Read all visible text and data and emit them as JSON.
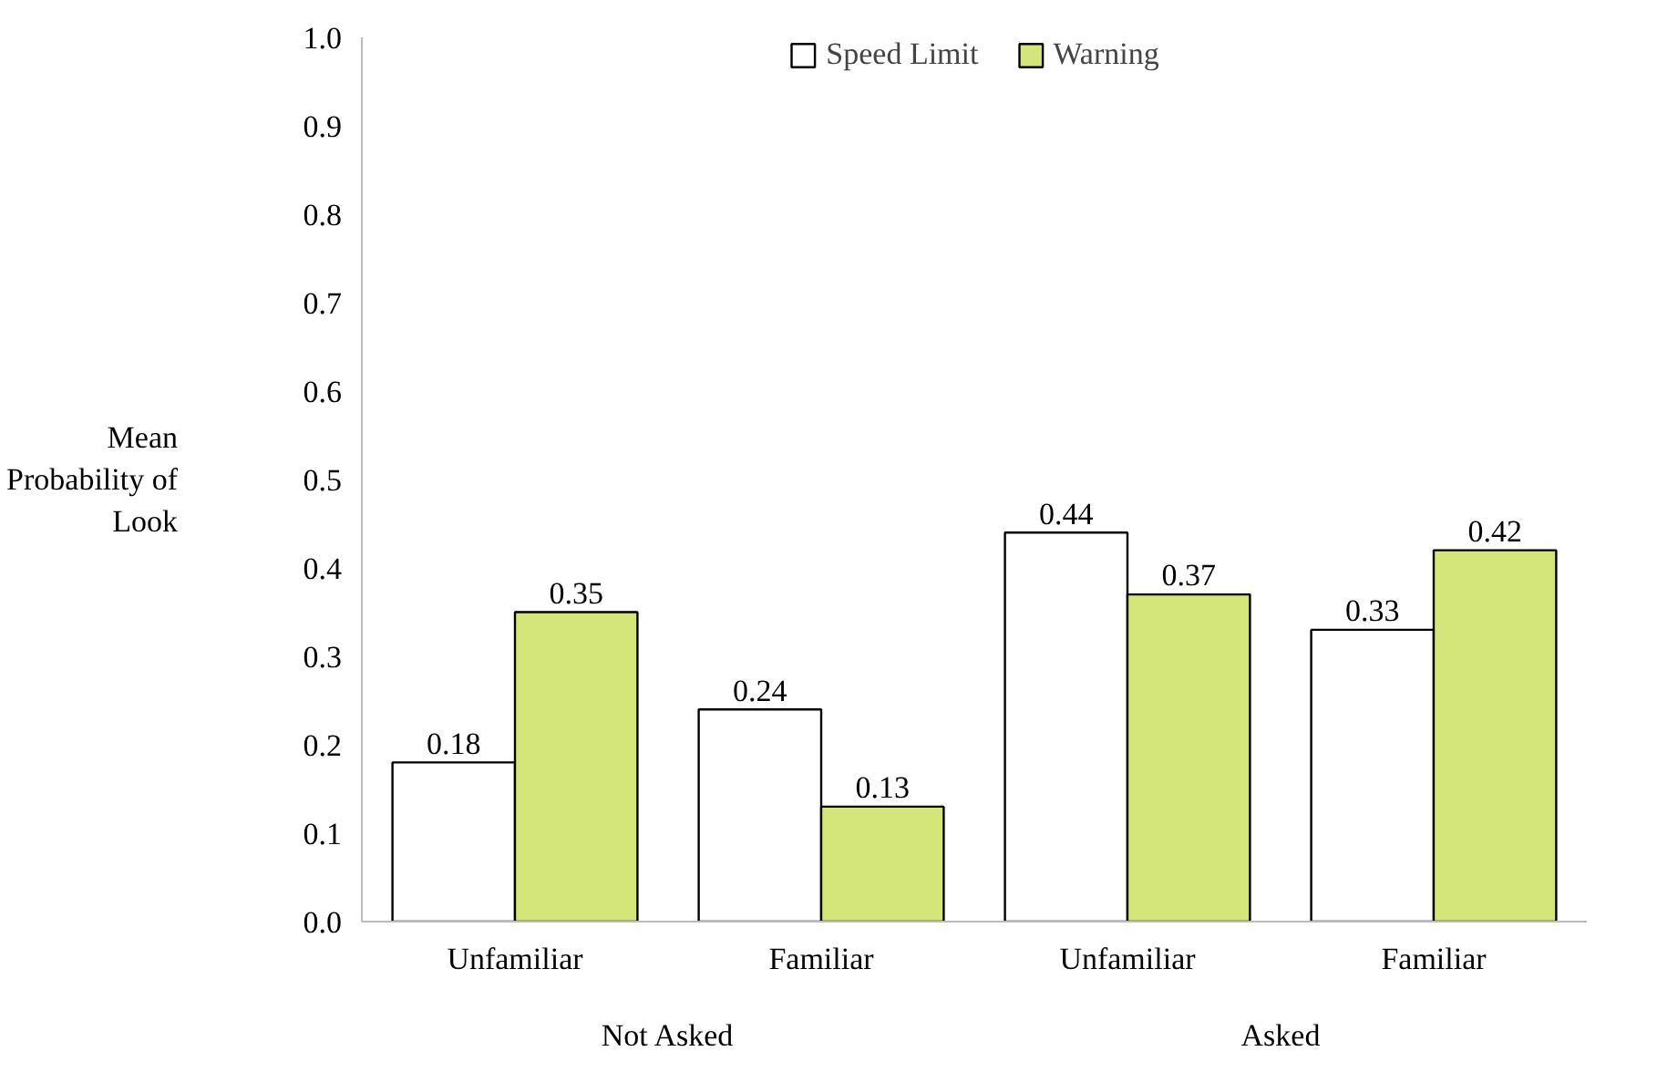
{
  "chart_data": {
    "type": "bar",
    "ylabel": "Mean Probability of Look",
    "categories": [
      "Unfamiliar",
      "Familiar",
      "Unfamiliar",
      "Familiar"
    ],
    "annotations": [
      "Not Asked",
      "Asked"
    ],
    "series": [
      {
        "name": "Speed Limit",
        "color": "#ffffff",
        "values": [
          0.18,
          0.24,
          0.44,
          0.33
        ]
      },
      {
        "name": "Warning",
        "color": "#d4e67a",
        "values": [
          0.35,
          0.13,
          0.37,
          0.42
        ]
      }
    ],
    "ylim": [
      0,
      1
    ],
    "yticks": [
      {
        "value": 0,
        "label": "0.0"
      },
      {
        "value": 0.1,
        "label": "0.1"
      },
      {
        "value": 0.2,
        "label": "0.2"
      },
      {
        "value": 0.3,
        "label": "0.3"
      },
      {
        "value": 0.4,
        "label": "0.4"
      },
      {
        "value": 0.5,
        "label": "0.5"
      },
      {
        "value": 0.6,
        "label": "0.6"
      },
      {
        "value": 0.7,
        "label": "0.7"
      },
      {
        "value": 0.8,
        "label": "0.8"
      },
      {
        "value": 0.9,
        "label": "0.9"
      },
      {
        "value": 1,
        "label": "1.0"
      }
    ],
    "data_labels": true,
    "legend": "top",
    "grid": false
  }
}
